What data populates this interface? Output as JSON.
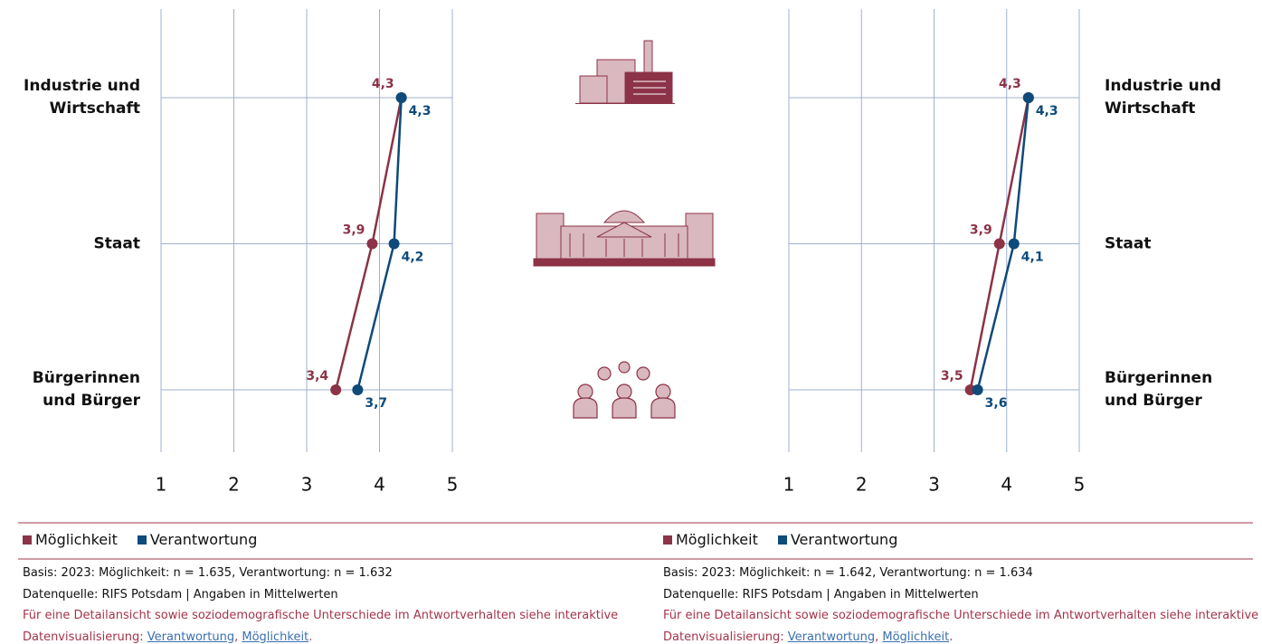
{
  "chart_data": [
    {
      "type": "line",
      "categories": [
        "Industrie und Wirtschaft",
        "Staat",
        "Bürgerinnen und Bürger"
      ],
      "series": [
        {
          "name": "Möglichkeit",
          "color": "#8c3347",
          "values": [
            4.3,
            3.9,
            3.4
          ],
          "value_labels": [
            "4,3",
            "3,9",
            "3,4"
          ]
        },
        {
          "name": "Verantwortung",
          "color": "#0e4a7a",
          "values": [
            4.3,
            4.2,
            3.7
          ],
          "value_labels": [
            "4,3",
            "4,2",
            "3,7"
          ]
        }
      ],
      "xlim": [
        1,
        5
      ],
      "xticks": [
        1,
        2,
        3,
        4,
        5
      ],
      "grid": true,
      "basis": "Basis: 2023: Möglichkeit: n = 1.635, Verantwortung: n = 1.632",
      "source": "Datenquelle: RIFS Potsdam | Angaben in Mittelwerten",
      "note": "Für eine Detailansicht sowie soziodemografische Unterschiede im Antwortverhalten siehe interaktive Datenvisualisierung:",
      "links": [
        {
          "text": "Verantwortung",
          "after": ","
        },
        {
          "text": "Möglichkeit",
          "after": "."
        }
      ]
    },
    {
      "type": "line",
      "categories": [
        "Industrie und Wirtschaft",
        "Staat",
        "Bürgerinnen und Bürger"
      ],
      "series": [
        {
          "name": "Möglichkeit",
          "color": "#8c3347",
          "values": [
            4.3,
            3.9,
            3.5
          ],
          "value_labels": [
            "4,3",
            "3,9",
            "3,5"
          ]
        },
        {
          "name": "Verantwortung",
          "color": "#0e4a7a",
          "values": [
            4.3,
            4.1,
            3.6
          ],
          "value_labels": [
            "4,3",
            "4,1",
            "3,6"
          ]
        }
      ],
      "xlim": [
        1,
        5
      ],
      "xticks": [
        1,
        2,
        3,
        4,
        5
      ],
      "grid": true,
      "basis": "Basis: 2023: Möglichkeit: n = 1.642, Verantwortung: n = 1.634",
      "source": "Datenquelle: RIFS Potsdam | Angaben in Mittelwerten",
      "note": "Für eine Detailansicht sowie soziodemografische Unterschiede im Antwortverhalten siehe interaktive Datenvisualisierung:",
      "links": [
        {
          "text": "Verantwortung",
          "after": ","
        },
        {
          "text": "Möglichkeit",
          "after": "."
        }
      ]
    }
  ]
}
